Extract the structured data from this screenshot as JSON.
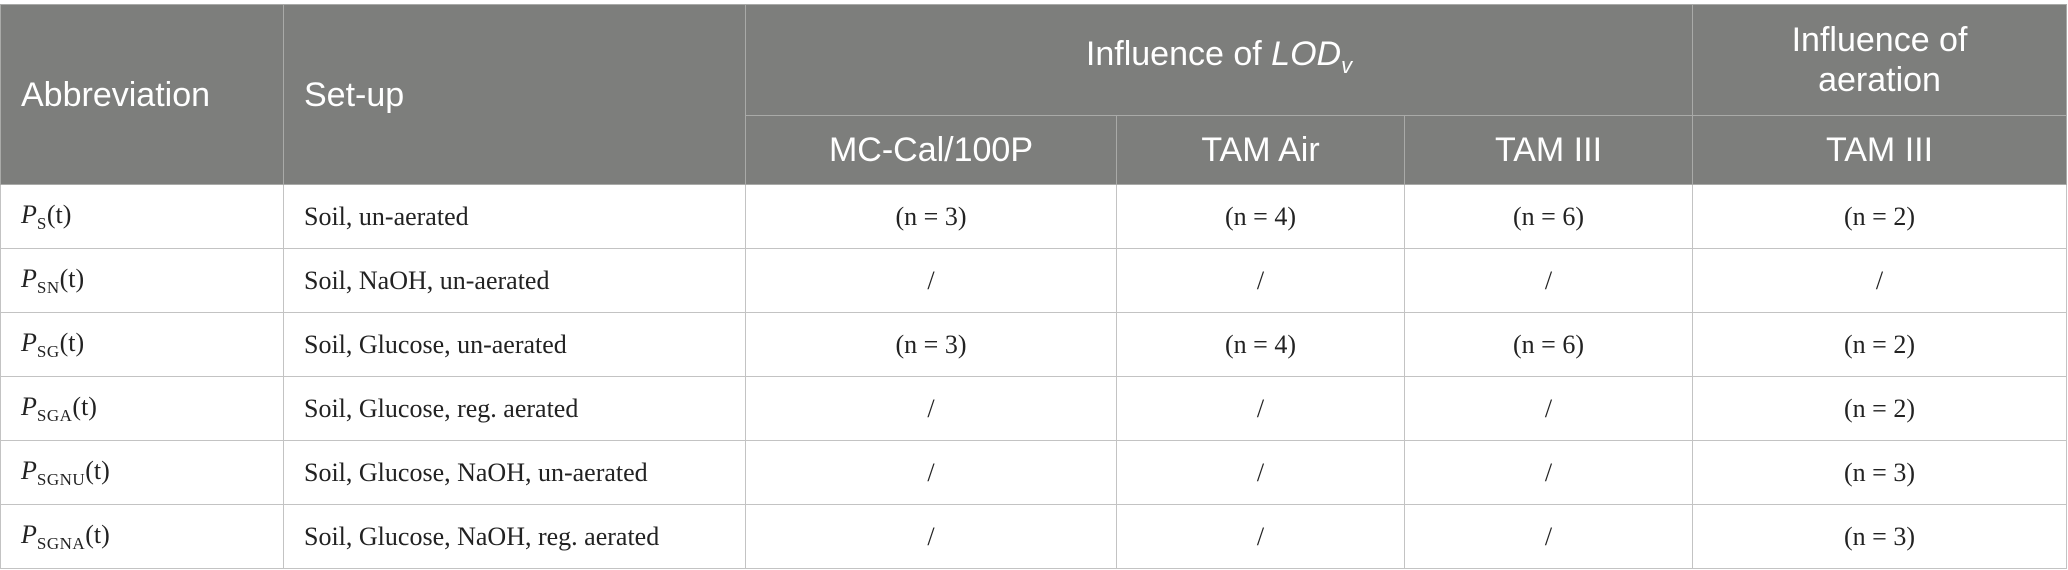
{
  "table": {
    "headers": {
      "abbreviation": "Abbreviation",
      "setup": "Set-up",
      "lod_group_prefix": "Influence of ",
      "lod_group_italic": "LOD",
      "lod_group_sub": "v",
      "aeration_group": "Influence of aeration",
      "sub_mccal": "MC-Cal/100P",
      "sub_tamair": "TAM Air",
      "sub_tam3": "TAM III",
      "sub_tam3_aeration": "TAM III"
    },
    "rows": [
      {
        "abbr_letter": "P",
        "abbr_sub": "S",
        "abbr_arg": "(t)",
        "setup": "Soil, un-aerated",
        "mccal": "(n = 3)",
        "tamair": "(n = 4)",
        "tam3": "(n = 6)",
        "aeration": "(n = 2)"
      },
      {
        "abbr_letter": "P",
        "abbr_sub": "SN",
        "abbr_arg": "(t)",
        "setup": "Soil, NaOH, un-aerated",
        "mccal": "/",
        "tamair": "/",
        "tam3": "/",
        "aeration": "/"
      },
      {
        "abbr_letter": "P",
        "abbr_sub": "SG",
        "abbr_arg": "(t)",
        "setup": "Soil, Glucose, un-aerated",
        "mccal": "(n = 3)",
        "tamair": "(n = 4)",
        "tam3": "(n = 6)",
        "aeration": "(n = 2)"
      },
      {
        "abbr_letter": "P",
        "abbr_sub": "SGA",
        "abbr_arg": "(t)",
        "setup": "Soil, Glucose, reg. aerated",
        "mccal": "/",
        "tamair": "/",
        "tam3": "/",
        "aeration": "(n = 2)"
      },
      {
        "abbr_letter": "P",
        "abbr_sub": "SGNU",
        "abbr_arg": "(t)",
        "setup": "Soil, Glucose, NaOH, un-aerated",
        "mccal": "/",
        "tamair": "/",
        "tam3": "/",
        "aeration": "(n = 3)"
      },
      {
        "abbr_letter": "P",
        "abbr_sub": "SGNA",
        "abbr_arg": "(t)",
        "setup": "Soil, Glucose, NaOH, reg. aerated",
        "mccal": "/",
        "tamair": "/",
        "tam3": "/",
        "aeration": "(n = 3)"
      }
    ]
  }
}
